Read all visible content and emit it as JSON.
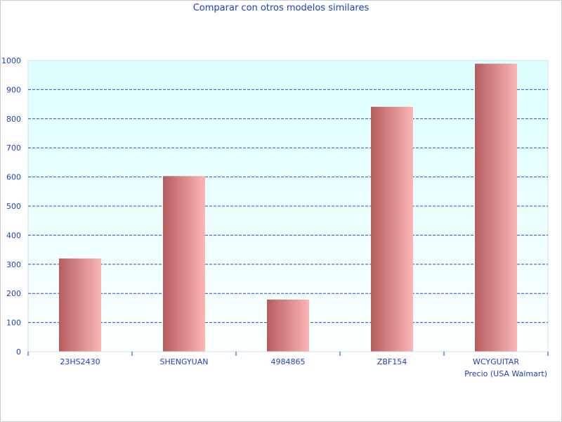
{
  "chart_data": {
    "type": "bar",
    "title": "Comparar con otros modelos similares",
    "xlabel": "Precio (USA Walmart)",
    "ylabel": "",
    "categories": [
      "23HS2430",
      "SHENGYUAN",
      "4984865",
      "ZBF154",
      "WCYGUITAR"
    ],
    "values": [
      320,
      603,
      179,
      841,
      989
    ],
    "ylim": [
      0,
      1000
    ],
    "yticks": [
      0,
      100,
      200,
      300,
      400,
      500,
      600,
      700,
      800,
      900,
      1000
    ],
    "grid": true,
    "colors": {
      "bar_dark": "#b55c5e",
      "bar_light": "#fbb6b6",
      "text": "#1f3fbf",
      "grid": "#2a4fcf",
      "bg_top": "#dcffff",
      "bg_bottom": "#fbffff"
    }
  }
}
